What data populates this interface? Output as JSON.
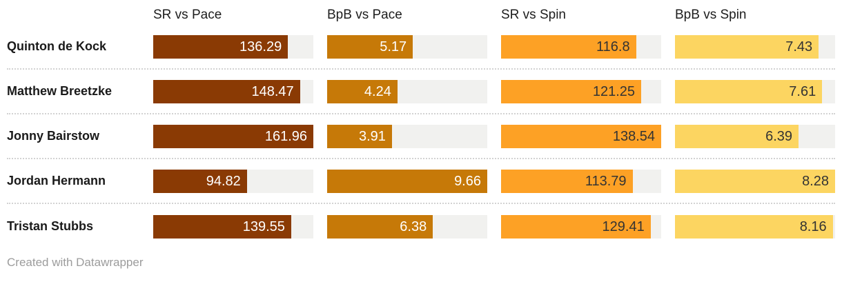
{
  "chart_data": {
    "type": "bar",
    "description": "Datawrapper bar-table of batting stats per player",
    "columns": [
      "SR vs Pace",
      "BpB vs Pace",
      "SR vs Spin",
      "BpB vs Spin"
    ],
    "rows": [
      {
        "player": "Quinton de Kock",
        "values": [
          "136.29",
          "5.17",
          "116.8",
          "7.43"
        ]
      },
      {
        "player": "Matthew Breetzke",
        "values": [
          "148.47",
          "4.24",
          "121.25",
          "7.61"
        ]
      },
      {
        "player": "Jonny Bairstow",
        "values": [
          "161.96",
          "3.91",
          "138.54",
          "6.39"
        ]
      },
      {
        "player": "Jordan Hermann",
        "values": [
          "94.82",
          "9.66",
          "113.79",
          "8.28"
        ]
      },
      {
        "player": "Tristan Stubbs",
        "values": [
          "139.55",
          "6.38",
          "129.41",
          "8.16"
        ]
      }
    ],
    "column_max": [
      161.96,
      9.66,
      138.54,
      8.28
    ],
    "bar_colors": [
      "#8A3A04",
      "#C67908",
      "#FDA125",
      "#FCD561"
    ],
    "value_text_colors": [
      "#FFFFFF",
      "#FFFFFF",
      "#333333",
      "#333333"
    ],
    "track_color": "#F1F1EF",
    "layout": {
      "legend": "none",
      "grid": "off",
      "bars_scaled_to": "column max"
    }
  },
  "footer": {
    "attribution": "Created with Datawrapper"
  }
}
